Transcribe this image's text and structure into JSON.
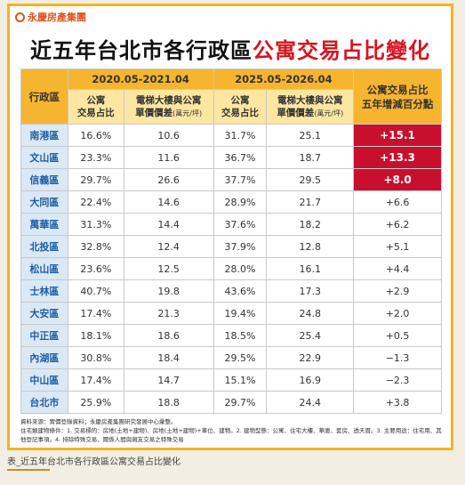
{
  "logo": "永慶房產集團",
  "title": {
    "main": "近五年台北市各行政區",
    "highlight": "公寓交易占比變化"
  },
  "table": {
    "header": {
      "district": "行政區",
      "period1": "2020.05-2021.04",
      "period2": "2025.05-2026.04",
      "change": [
        "公寓交易占比",
        "五年增減百分點"
      ],
      "share": [
        "公寓",
        "交易占比"
      ],
      "gap": [
        "電梯大樓與公寓",
        "單價價差",
        "(萬元/坪)"
      ]
    },
    "rows": [
      [
        "南港區",
        "16.6%",
        "10.6",
        "31.7%",
        "25.1",
        "+15.1"
      ],
      [
        "文山區",
        "23.3%",
        "11.6",
        "36.7%",
        "18.7",
        "+13.3"
      ],
      [
        "信義區",
        "29.7%",
        "26.6",
        "37.7%",
        "29.5",
        "+8.0"
      ],
      [
        "大同區",
        "22.4%",
        "14.6",
        "28.9%",
        "21.7",
        "+6.6"
      ],
      [
        "萬華區",
        "31.3%",
        "14.4",
        "37.6%",
        "18.2",
        "+6.2"
      ],
      [
        "北投區",
        "32.8%",
        "12.4",
        "37.9%",
        "12.8",
        "+5.1"
      ],
      [
        "松山區",
        "23.6%",
        "12.5",
        "28.0%",
        "16.1",
        "+4.4"
      ],
      [
        "士林區",
        "40.7%",
        "19.8",
        "43.6%",
        "17.3",
        "+2.9"
      ],
      [
        "大安區",
        "17.4%",
        "21.3",
        "19.4%",
        "24.8",
        "+2.0"
      ],
      [
        "中正區",
        "18.1%",
        "18.6",
        "18.5%",
        "25.4",
        "+0.5"
      ],
      [
        "內湖區",
        "30.8%",
        "18.4",
        "29.5%",
        "22.9",
        "−1.3"
      ],
      [
        "中山區",
        "17.4%",
        "14.7",
        "15.1%",
        "16.9",
        "−2.3"
      ],
      [
        "台北市",
        "25.9%",
        "18.8",
        "29.7%",
        "24.4",
        "+3.8"
      ]
    ]
  },
  "notes": [
    "資料來源：實價登錄資料；永慶房產集團研究發展中心彙整。",
    "住宅類建物條件：1. 交易標的：房地(土地+建物)、房地(土地+建物)+車位、建物。2. 建物型態：公寓、住宅大樓、華廈、套房、透天厝。3. 主要用途：住宅用、其他登記事項。4. 排除特殊交易，關係人間與親友交易之特殊交易"
  ],
  "caption": "表_近五年台北市各行政區公寓交易占比變化"
}
